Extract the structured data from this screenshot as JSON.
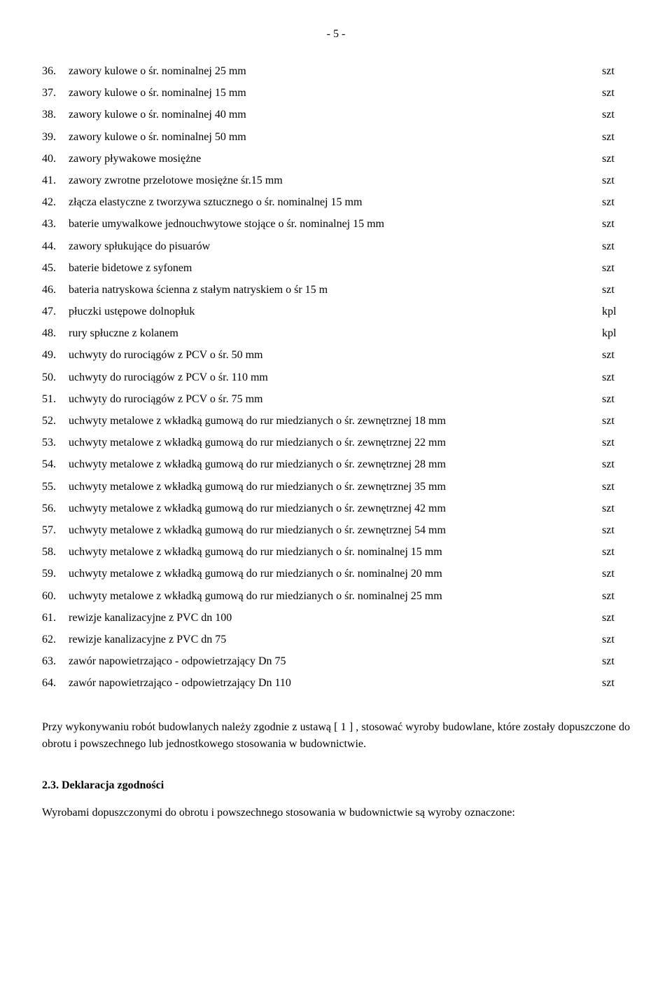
{
  "page_number": "- 5 -",
  "rows": [
    {
      "num": "36.",
      "desc": "zawory kulowe o śr. nominalnej 25 mm",
      "unit": "szt"
    },
    {
      "num": "37.",
      "desc": "zawory kulowe o śr. nominalnej 15 mm",
      "unit": "szt"
    },
    {
      "num": "38.",
      "desc": "zawory kulowe o śr. nominalnej 40 mm",
      "unit": "szt"
    },
    {
      "num": "39.",
      "desc": "zawory kulowe o śr. nominalnej 50 mm",
      "unit": "szt"
    },
    {
      "num": "40.",
      "desc": "zawory pływakowe mosiężne",
      "unit": "szt"
    },
    {
      "num": "41.",
      "desc": "zawory zwrotne przelotowe mosiężne śr.15 mm",
      "unit": "szt"
    },
    {
      "num": "42.",
      "desc": "złącza elastyczne z tworzywa sztucznego o śr. nominalnej 15 mm",
      "unit": "szt"
    },
    {
      "num": "43.",
      "desc": "baterie umywalkowe jednouchwytowe stojące o śr. nominalnej 15 mm",
      "unit": "szt"
    },
    {
      "num": "44.",
      "desc": "zawory spłukujące do pisuarów",
      "unit": "szt"
    },
    {
      "num": "45.",
      "desc": "baterie bidetowe z syfonem",
      "unit": "szt"
    },
    {
      "num": "46.",
      "desc": "bateria natryskowa ścienna z stałym natryskiem o śr 15 m",
      "unit": "szt"
    },
    {
      "num": "47.",
      "desc": "płuczki ustępowe dolnopłuk",
      "unit": "kpl"
    },
    {
      "num": "48.",
      "desc": "rury spłuczne z kolanem",
      "unit": "kpl"
    },
    {
      "num": "49.",
      "desc": "uchwyty do rurociągów z PCV o śr. 50 mm",
      "unit": "szt"
    },
    {
      "num": "50.",
      "desc": "uchwyty do rurociągów z PCV o śr. 110 mm",
      "unit": "szt"
    },
    {
      "num": "51.",
      "desc": "uchwyty do rurociągów z PCV o śr. 75 mm",
      "unit": "szt"
    },
    {
      "num": "52.",
      "desc": "uchwyty metalowe z wkładką gumową do rur miedzianych o śr. zewnętrznej 18 mm",
      "unit": "szt"
    },
    {
      "num": "53.",
      "desc": "uchwyty metalowe z wkładką gumową do rur miedzianych o śr. zewnętrznej 22 mm",
      "unit": "szt"
    },
    {
      "num": "54.",
      "desc": "uchwyty metalowe z wkładką gumową do rur miedzianych o śr. zewnętrznej 28 mm",
      "unit": "szt"
    },
    {
      "num": "55.",
      "desc": "uchwyty metalowe z wkładką gumową do rur miedzianych o śr. zewnętrznej 35 mm",
      "unit": "szt"
    },
    {
      "num": "56.",
      "desc": "uchwyty metalowe z wkładką gumową do rur miedzianych o śr. zewnętrznej 42 mm",
      "unit": "szt"
    },
    {
      "num": "57.",
      "desc": "uchwyty metalowe z wkładką gumową do rur miedzianych o śr. zewnętrznej 54 mm",
      "unit": "szt"
    },
    {
      "num": "58.",
      "desc": "uchwyty metalowe z wkładką gumową do rur miedzianych o śr. nominalnej 15 mm",
      "unit": "szt"
    },
    {
      "num": "59.",
      "desc": "uchwyty metalowe z wkładką gumową do rur miedzianych o śr. nominalnej 20 mm",
      "unit": "szt"
    },
    {
      "num": "60.",
      "desc": "uchwyty metalowe z wkładką gumową do rur miedzianych o śr. nominalnej 25 mm",
      "unit": "szt"
    },
    {
      "num": "61.",
      "desc": "rewizje kanalizacyjne z PVC dn 100",
      "unit": "szt"
    },
    {
      "num": "62.",
      "desc": "rewizje kanalizacyjne z PVC dn 75",
      "unit": "szt"
    },
    {
      "num": "63.",
      "desc": "zawór napowietrzająco - odpowietrzający Dn 75",
      "unit": "szt"
    },
    {
      "num": "64.",
      "desc": "zawór napowietrzająco - odpowietrzający Dn 110",
      "unit": "szt"
    }
  ],
  "paragraph": "Przy wykonywaniu robót budowlanych należy zgodnie z ustawą [ 1 ] , stosować wyroby budowlane, które zostały dopuszczone do obrotu i powszechnego lub jednostkowego stosowania w budownictwie.",
  "subheading": "2.3. Deklaracja zgodności",
  "trailing": "Wyrobami dopuszczonymi do obrotu i powszechnego stosowania w budownictwie są wyroby oznaczone:"
}
